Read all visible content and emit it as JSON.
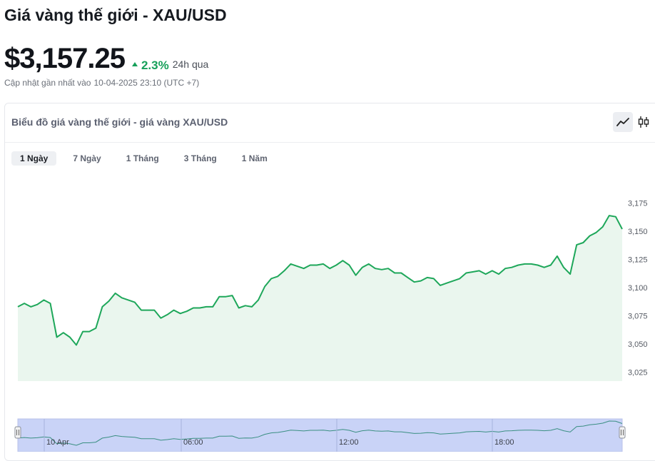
{
  "header": {
    "title": "Giá vàng thế giới - XAU/USD",
    "price": "$3,157.25",
    "change": "2.3%",
    "change_period": "24h qua",
    "updated_label": "Cập nhật gần nhất vào",
    "updated_value": "10-04-2025 23:10 (UTC +7)"
  },
  "card": {
    "title": "Biểu đồ giá vàng thế giới - giá vàng XAU/USD",
    "chart_type_buttons": [
      {
        "label": "line-chart",
        "active": true
      },
      {
        "label": "candlestick-chart",
        "active": false
      }
    ],
    "tabs": [
      "1 Ngày",
      "7 Ngày",
      "1 Tháng",
      "3 Tháng",
      "1 Năm"
    ],
    "active_tab": 0
  },
  "colors": {
    "line": "#1ea75a",
    "area": "#eaf6ee",
    "accent_green": "#16a05a",
    "navigator_fill": "#c9d3f7"
  },
  "chart_data": {
    "type": "line",
    "series": [
      {
        "values": [
          3083,
          3086,
          3083,
          3085,
          3089,
          3086,
          3056,
          3060,
          3056,
          3049,
          3061,
          3061,
          3064,
          3083,
          3088,
          3095,
          3091,
          3089,
          3087,
          3080,
          3080,
          3080,
          3073,
          3076,
          3080,
          3077,
          3079,
          3082,
          3082,
          3083,
          3083,
          3092,
          3092,
          3093,
          3082,
          3084,
          3083,
          3089,
          3101,
          3108,
          3110,
          3115,
          3121,
          3119,
          3117,
          3120,
          3120,
          3121,
          3117,
          3120,
          3124,
          3120,
          3111,
          3118,
          3121,
          3117,
          3116,
          3117,
          3113,
          3113,
          3109,
          3105,
          3106,
          3109,
          3108,
          3102,
          3104,
          3106,
          3108,
          3113,
          3114,
          3115,
          3112,
          3115,
          3112,
          3117,
          3118,
          3120,
          3121,
          3121,
          3120,
          3118,
          3120,
          3128,
          3118,
          3112,
          3138,
          3140,
          3146,
          3149,
          3154,
          3164,
          3163,
          3152
        ]
      }
    ],
    "y_ticks": [
      "3,025",
      "3,050",
      "3,075",
      "3,100",
      "3,125",
      "3,150",
      "3,175"
    ],
    "ylim": [
      3017,
      3178
    ],
    "navigator_x_labels": [
      "10 Apr",
      "06:00",
      "12:00",
      "18:00"
    ],
    "grid": false,
    "legend": "none"
  }
}
